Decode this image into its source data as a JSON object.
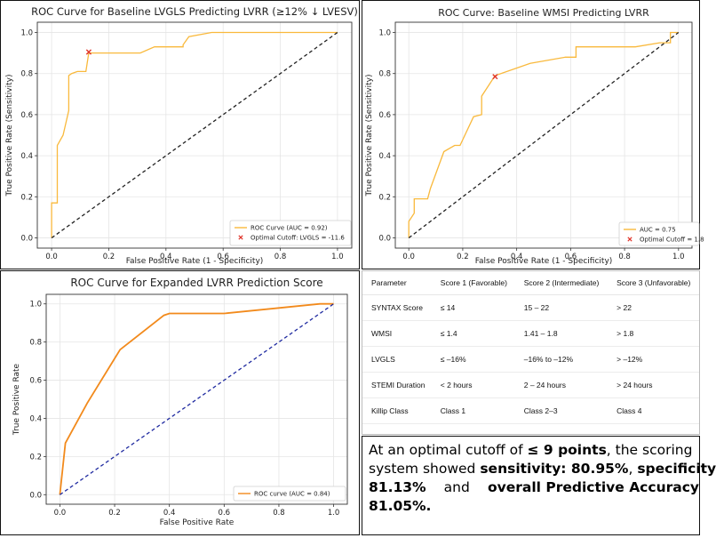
{
  "chart_data": [
    {
      "type": "line",
      "title": "ROC Curve for Baseline LVGLS Predicting LVRR (≥12% ↓ LVESV)",
      "xlabel": "False Positive Rate (1 - Specificity)",
      "ylabel": "True Positive Rate (Sensitivity)",
      "xlim": [
        -0.05,
        1.05
      ],
      "ylim": [
        -0.05,
        1.05
      ],
      "xticks": [
        "0.0",
        "0.2",
        "0.4",
        "0.6",
        "0.8",
        "1.0"
      ],
      "yticks": [
        "0.0",
        "0.2",
        "0.4",
        "0.6",
        "0.8",
        "1.0"
      ],
      "grid": true,
      "legend_position": "lower-right",
      "series": [
        {
          "name": "ROC Curve (AUC = 0.92)",
          "color": "#f9b93c",
          "style": "solid",
          "x": [
            0,
            0,
            0.02,
            0.02,
            0.04,
            0.06,
            0.06,
            0.07,
            0.09,
            0.12,
            0.13,
            0.19,
            0.23,
            0.31,
            0.36,
            0.46,
            0.46,
            0.48,
            0.56,
            0.6,
            0.72,
            1.0
          ],
          "y": [
            0,
            0.17,
            0.17,
            0.45,
            0.5,
            0.62,
            0.79,
            0.8,
            0.81,
            0.81,
            0.9,
            0.9,
            0.9,
            0.9,
            0.93,
            0.93,
            0.94,
            0.98,
            1.0,
            1.0,
            1.0,
            1.0
          ]
        },
        {
          "name": "",
          "color": "#222222",
          "style": "dashed",
          "x": [
            0,
            1
          ],
          "y": [
            0,
            1
          ]
        }
      ],
      "markers": [
        {
          "name": "Optimal Cutoff: LVGLS = -11.6",
          "x": 0.13,
          "y": 0.905,
          "color": "#e0352b",
          "symbol": "x"
        }
      ]
    },
    {
      "type": "line",
      "title": "ROC Curve: Baseline WMSI Predicting LVRR",
      "xlabel": "False Positive Rate (1 - Specificity)",
      "ylabel": "True Positive Rate (Sensitivity)",
      "xlim": [
        -0.05,
        1.05
      ],
      "ylim": [
        -0.05,
        1.05
      ],
      "xticks": [
        "0.0",
        "0.2",
        "0.4",
        "0.6",
        "0.8",
        "1.0"
      ],
      "yticks": [
        "0.0",
        "0.2",
        "0.4",
        "0.6",
        "0.8",
        "1.0"
      ],
      "grid": true,
      "legend_position": "lower-right",
      "series": [
        {
          "name": "AUC = 0.75",
          "color": "#f9b93c",
          "style": "solid",
          "x": [
            0,
            0,
            0.02,
            0.02,
            0.07,
            0.08,
            0.13,
            0.17,
            0.19,
            0.24,
            0.27,
            0.27,
            0.32,
            0.45,
            0.58,
            0.62,
            0.62,
            0.7,
            0.84,
            0.93,
            0.97,
            0.97,
            1.0
          ],
          "y": [
            0,
            0.08,
            0.12,
            0.19,
            0.19,
            0.24,
            0.42,
            0.45,
            0.45,
            0.59,
            0.6,
            0.69,
            0.79,
            0.85,
            0.88,
            0.88,
            0.93,
            0.93,
            0.93,
            0.95,
            0.95,
            1.0,
            1.0
          ]
        },
        {
          "name": "",
          "color": "#222222",
          "style": "dashed",
          "x": [
            0,
            1
          ],
          "y": [
            0,
            1
          ]
        }
      ],
      "markers": [
        {
          "name": "Optimal Cutoff = 1.8",
          "x": 0.32,
          "y": 0.785,
          "color": "#e0352b",
          "symbol": "x"
        }
      ]
    },
    {
      "type": "line",
      "title": "ROC Curve for Expanded LVRR Prediction Score",
      "xlabel": "False Positive Rate",
      "ylabel": "True Positive Rate",
      "xlim": [
        -0.05,
        1.05
      ],
      "ylim": [
        -0.05,
        1.05
      ],
      "xticks": [
        "0.0",
        "0.2",
        "0.4",
        "0.6",
        "0.8",
        "1.0"
      ],
      "yticks": [
        "0.0",
        "0.2",
        "0.4",
        "0.6",
        "0.8",
        "1.0"
      ],
      "grid": true,
      "legend_position": "lower-right",
      "series": [
        {
          "name": "ROC curve (AUC = 0.84)",
          "color": "#f28a1c",
          "style": "solid",
          "x": [
            0,
            0.02,
            0.1,
            0.22,
            0.38,
            0.4,
            0.6,
            0.95,
            1.0
          ],
          "y": [
            0,
            0.27,
            0.48,
            0.76,
            0.94,
            0.95,
            0.95,
            1.0,
            1.0
          ]
        },
        {
          "name": "",
          "color": "#1f2aa0",
          "style": "dashed",
          "x": [
            0,
            1
          ],
          "y": [
            0,
            1
          ]
        }
      ],
      "markers": []
    }
  ],
  "score_table": {
    "headers": [
      "Parameter",
      "Score 1 (Favorable)",
      "Score 2 (Intermediate)",
      "Score 3 (Unfavorable)"
    ],
    "rows": [
      [
        "SYNTAX Score",
        "≤ 14",
        "15 – 22",
        "> 22"
      ],
      [
        "WMSI",
        "≤ 1.4",
        "1.41 – 1.8",
        "> 1.8"
      ],
      [
        "LVGLS",
        "≤ –16%",
        "–16% to –12%",
        "> –12%"
      ],
      [
        "STEMI Duration",
        "< 2 hours",
        "2 – 24 hours",
        "> 24 hours"
      ],
      [
        "Killip Class",
        "Class 1",
        "Class 2–3",
        "Class 4"
      ]
    ]
  },
  "summary": {
    "l1a": "At an optimal cutoff of ",
    "l1b": "≤ 9 points",
    "l1c": ", the scoring",
    "l2a": "system showed ",
    "l2b": "sensitivity: 80.95%",
    "l2c": ", ",
    "l2d": "specificity",
    "l3a": "81.13%",
    "l3b": " and ",
    "l3c": "overall Predictive Accuracy",
    "l4a": "81.05%."
  }
}
